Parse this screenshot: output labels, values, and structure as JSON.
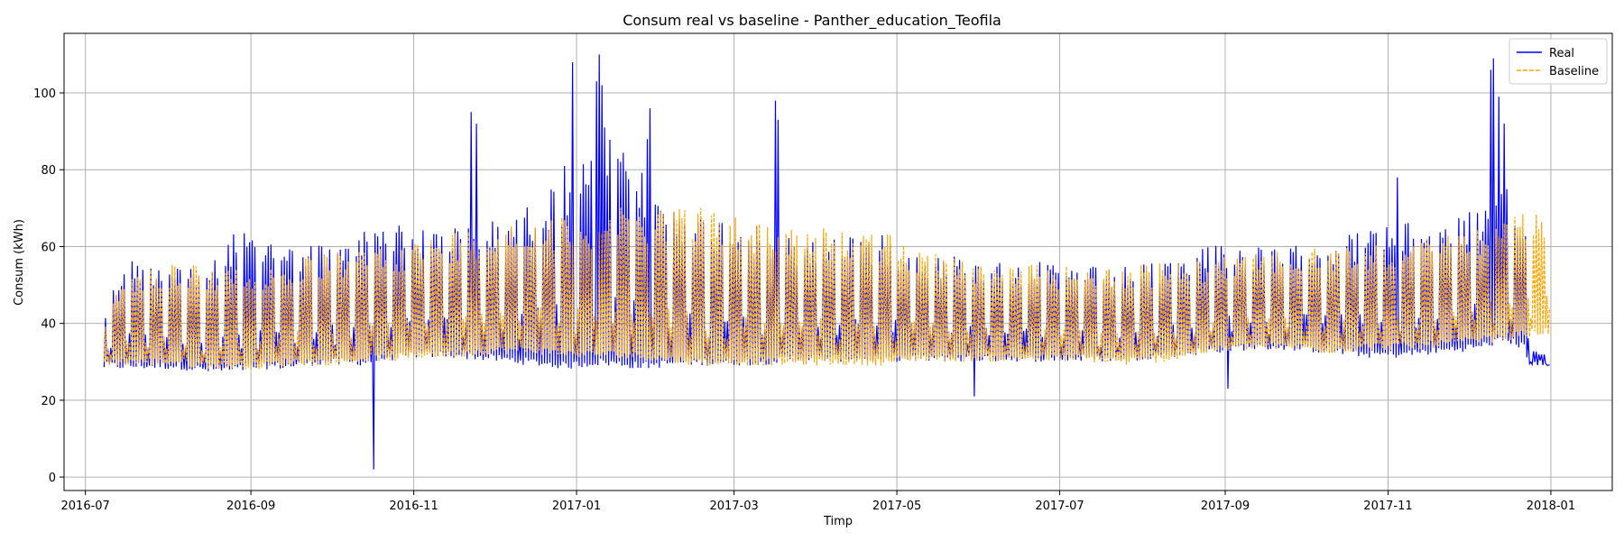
{
  "chart_data": {
    "type": "line",
    "title": "Consum real vs baseline - Panther_education_Teofila",
    "xlabel": "Timp",
    "ylabel": "Consum (kWh)",
    "x_range": [
      "2016-06-23",
      "2018-01-24"
    ],
    "ylim": [
      -3.5,
      115.5
    ],
    "grid": true,
    "legend": "top-right",
    "x_ticks": [
      "2016-07",
      "2016-09",
      "2016-11",
      "2017-01",
      "2017-03",
      "2017-05",
      "2017-07",
      "2017-09",
      "2017-11",
      "2018-01"
    ],
    "y_ticks": [
      0,
      20,
      40,
      60,
      80,
      100
    ],
    "date_range": [
      "2016-07-08",
      "2017-12-31"
    ],
    "series": [
      {
        "name": "Real",
        "color": "#0000ff",
        "style": "solid",
        "sampling": "daily_min_max",
        "envelope": [
          [
            "2016-07-08",
            28,
            44
          ],
          [
            "2016-07-15",
            28,
            57
          ],
          [
            "2016-07-25",
            28,
            57
          ],
          [
            "2016-08-05",
            28,
            57
          ],
          [
            "2016-08-15",
            27,
            55
          ],
          [
            "2016-08-25",
            27,
            65
          ],
          [
            "2016-09-05",
            28,
            63
          ],
          [
            "2016-09-15",
            28,
            62
          ],
          [
            "2016-09-25",
            29,
            61
          ],
          [
            "2016-10-05",
            29,
            61
          ],
          [
            "2016-10-15",
            29,
            66
          ],
          [
            "2016-10-20",
            30,
            70
          ],
          [
            "2016-11-01",
            31,
            64
          ],
          [
            "2016-11-15",
            31,
            66
          ],
          [
            "2016-12-01",
            30,
            67
          ],
          [
            "2016-12-15",
            29,
            72
          ],
          [
            "2016-12-28",
            28,
            78
          ],
          [
            "2017-01-10",
            29,
            90
          ],
          [
            "2017-01-25",
            28,
            80
          ],
          [
            "2017-02-10",
            29,
            70
          ],
          [
            "2017-02-25",
            29,
            68
          ],
          [
            "2017-03-10",
            29,
            65
          ],
          [
            "2017-03-25",
            30,
            62
          ],
          [
            "2017-04-10",
            30,
            64
          ],
          [
            "2017-04-25",
            30,
            63
          ],
          [
            "2017-05-10",
            30,
            58
          ],
          [
            "2017-05-25",
            30,
            58
          ],
          [
            "2017-06-10",
            30,
            56
          ],
          [
            "2017-06-25",
            30,
            56
          ],
          [
            "2017-07-10",
            30,
            55
          ],
          [
            "2017-07-25",
            30,
            55
          ],
          [
            "2017-08-10",
            31,
            56
          ],
          [
            "2017-08-25",
            32,
            62
          ],
          [
            "2017-09-10",
            33,
            60
          ],
          [
            "2017-09-25",
            33,
            60
          ],
          [
            "2017-10-10",
            32,
            62
          ],
          [
            "2017-10-25",
            31,
            65
          ],
          [
            "2017-11-05",
            31,
            66
          ],
          [
            "2017-11-20",
            32,
            67
          ],
          [
            "2017-12-05",
            33,
            70
          ],
          [
            "2017-12-15",
            35,
            75
          ],
          [
            "2017-12-22",
            33,
            65
          ],
          [
            "2017-12-24",
            29,
            33
          ],
          [
            "2017-12-31",
            28,
            33
          ]
        ],
        "peaks": [
          [
            "2016-10-17",
            2
          ],
          [
            "2016-11-22",
            95
          ],
          [
            "2016-11-24",
            92
          ],
          [
            "2016-12-27",
            81
          ],
          [
            "2016-12-30",
            108
          ],
          [
            "2017-01-08",
            103
          ],
          [
            "2017-01-09",
            110
          ],
          [
            "2017-01-10",
            102
          ],
          [
            "2017-01-11",
            91
          ],
          [
            "2017-01-27",
            88
          ],
          [
            "2017-01-28",
            96
          ],
          [
            "2017-03-16",
            98
          ],
          [
            "2017-03-17",
            93
          ],
          [
            "2017-05-30",
            21
          ],
          [
            "2017-09-02",
            23
          ],
          [
            "2017-11-04",
            78
          ],
          [
            "2017-12-09",
            106
          ],
          [
            "2017-12-10",
            109
          ],
          [
            "2017-12-12",
            99
          ],
          [
            "2017-12-14",
            92
          ]
        ]
      },
      {
        "name": "Baseline",
        "color": "#ffa500",
        "style": "dashed",
        "sampling": "daily_min_max",
        "envelope": [
          [
            "2016-07-08",
            29,
            42
          ],
          [
            "2016-07-15",
            29,
            54
          ],
          [
            "2016-07-25",
            29,
            55
          ],
          [
            "2016-08-05",
            29,
            56
          ],
          [
            "2016-08-15",
            28,
            55
          ],
          [
            "2016-08-25",
            28,
            55
          ],
          [
            "2016-09-05",
            28,
            55
          ],
          [
            "2016-09-15",
            29,
            56
          ],
          [
            "2016-09-25",
            29,
            58
          ],
          [
            "2016-10-05",
            29,
            59
          ],
          [
            "2016-10-15",
            30,
            60
          ],
          [
            "2016-10-25",
            30,
            61
          ],
          [
            "2016-11-05",
            31,
            62
          ],
          [
            "2016-11-15",
            31,
            64
          ],
          [
            "2016-12-01",
            32,
            66
          ],
          [
            "2016-12-15",
            32,
            67
          ],
          [
            "2017-01-01",
            31,
            68
          ],
          [
            "2017-01-15",
            31,
            70
          ],
          [
            "2017-02-01",
            30,
            71
          ],
          [
            "2017-02-15",
            29,
            72
          ],
          [
            "2017-03-01",
            29,
            68
          ],
          [
            "2017-03-20",
            29,
            66
          ],
          [
            "2017-04-10",
            29,
            65
          ],
          [
            "2017-04-25",
            29,
            64
          ],
          [
            "2017-05-10",
            30,
            60
          ],
          [
            "2017-05-25",
            30,
            57
          ],
          [
            "2017-06-10",
            30,
            56
          ],
          [
            "2017-06-25",
            30,
            55
          ],
          [
            "2017-07-10",
            30,
            55
          ],
          [
            "2017-07-25",
            29,
            55
          ],
          [
            "2017-08-10",
            30,
            56
          ],
          [
            "2017-08-25",
            32,
            57
          ],
          [
            "2017-09-10",
            33,
            58
          ],
          [
            "2017-09-25",
            33,
            59
          ],
          [
            "2017-10-10",
            32,
            60
          ],
          [
            "2017-10-25",
            33,
            61
          ],
          [
            "2017-11-10",
            33,
            62
          ],
          [
            "2017-11-25",
            34,
            63
          ],
          [
            "2017-12-10",
            35,
            66
          ],
          [
            "2017-12-20",
            36,
            69
          ],
          [
            "2017-12-31",
            37,
            69
          ]
        ],
        "peaks": []
      }
    ]
  }
}
